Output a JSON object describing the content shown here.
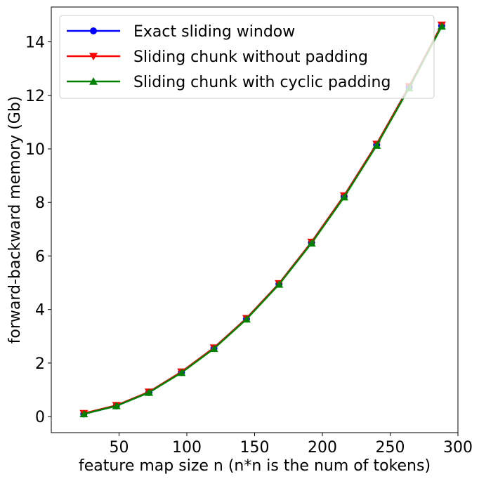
{
  "chart_data": {
    "type": "line",
    "title": "",
    "xlabel": "feature map size n (n*n is the num of tokens)",
    "ylabel": "forward-backward memory (Gb)",
    "xlim": [
      0,
      300
    ],
    "ylim": [
      -0.6,
      15.3
    ],
    "xticks": [
      50,
      100,
      150,
      200,
      250,
      300
    ],
    "yticks": [
      0,
      2,
      4,
      6,
      8,
      10,
      12,
      14
    ],
    "grid": false,
    "legend_position": "top-left",
    "x": [
      24,
      48,
      72,
      96,
      120,
      144,
      168,
      192,
      216,
      240,
      264,
      288
    ],
    "series": [
      {
        "name": "Exact sliding window",
        "color": "#0000ff",
        "marker": "circle",
        "values": [
          0.1,
          0.4,
          0.9,
          1.65,
          2.55,
          3.65,
          4.95,
          6.5,
          8.22,
          10.15,
          12.3,
          14.6
        ]
      },
      {
        "name": "Sliding chunk without padding",
        "color": "#ff0000",
        "marker": "triangle-down",
        "values": [
          0.12,
          0.42,
          0.92,
          1.67,
          2.57,
          3.67,
          4.97,
          6.52,
          8.25,
          10.18,
          12.33,
          14.63
        ]
      },
      {
        "name": "Sliding chunk with cyclic padding",
        "color": "#008000",
        "marker": "triangle-up",
        "values": [
          0.1,
          0.4,
          0.9,
          1.64,
          2.54,
          3.64,
          4.94,
          6.48,
          8.2,
          10.13,
          12.28,
          14.58
        ]
      }
    ]
  }
}
